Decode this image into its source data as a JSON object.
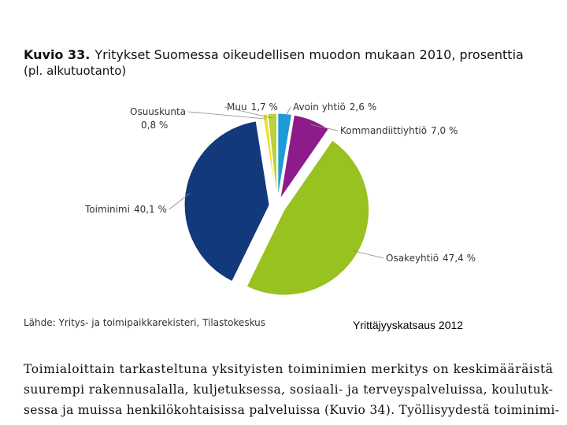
{
  "chart_data": {
    "type": "pie",
    "figure_label": "Kuvio 33.",
    "title": "Yritykset Suomessa oikeudellisen muodon mukaan 2010, prosenttia",
    "subtitle": "(pl. alkutuotanto)",
    "categories": [
      "Avoin yhtiö",
      "Kommandiittiyhtiö",
      "Osakeyhtiö",
      "Toiminimi",
      "Osuuskunta",
      "Muu"
    ],
    "values": [
      2.6,
      7.0,
      47.4,
      40.1,
      0.8,
      1.7
    ],
    "value_labels": [
      "2,6 %",
      "7,0 %",
      "47,4 %",
      "40,1 %",
      "0,8 %",
      "1,7 %"
    ],
    "colors": [
      "#1d9bd7",
      "#8e1b8c",
      "#98c21f",
      "#12397b",
      "#f1df1b",
      "#b9d23e"
    ],
    "source": "Lähde: Yritys- ja toimipaikkarekisteri, Tilastokeskus",
    "publication": "Yrittäjyyskatsaus 2012"
  },
  "body_text": [
    "Toimialoittain tarkasteltuna yksityisten toiminimien merkitys on keskimääräistä",
    "suurempi rakennusalalla, kuljetuksessa, sosiaali- ja terveyspalveluissa, koulutuk-",
    "sessa ja muissa henkilökohtaisissa palveluissa (Kuvio 34). Työllisyydestä toiminimi-"
  ]
}
